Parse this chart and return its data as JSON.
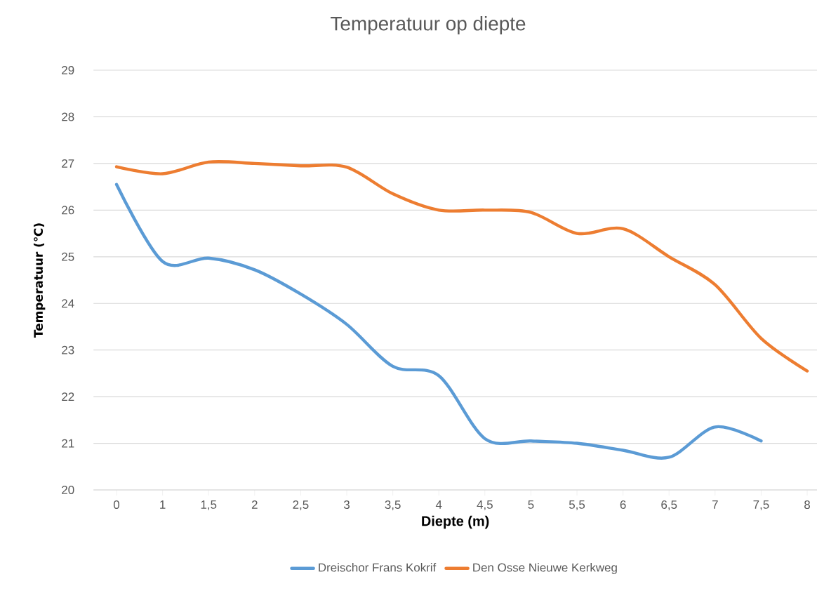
{
  "chart_data": {
    "type": "line",
    "title": "Temperatuur op diepte",
    "xlabel": "Diepte (m)",
    "ylabel": "Temperatuur (℃)",
    "categories": [
      "0",
      "1",
      "1,5",
      "2",
      "2,5",
      "3",
      "3,5",
      "4",
      "4,5",
      "5",
      "5,5",
      "6",
      "6,5",
      "7",
      "7,5",
      "8"
    ],
    "series": [
      {
        "name": "Dreischor Frans Kokrif",
        "color": "#5b9bd5",
        "values": [
          26.55,
          24.9,
          24.97,
          24.72,
          24.2,
          23.55,
          22.65,
          22.45,
          21.1,
          21.05,
          21.0,
          20.85,
          20.7,
          21.35,
          21.05,
          null
        ]
      },
      {
        "name": "Den Osse Nieuwe Kerkweg",
        "color": "#ed7d31",
        "values": [
          26.93,
          26.78,
          27.03,
          27.0,
          26.95,
          26.92,
          26.35,
          26.0,
          26.0,
          25.95,
          25.5,
          25.6,
          25.0,
          24.4,
          23.25,
          22.55
        ]
      }
    ],
    "ylim": [
      20,
      29
    ],
    "yticks": [
      20,
      21,
      22,
      23,
      24,
      25,
      26,
      27,
      28,
      29
    ],
    "grid": "y",
    "legend": "bottom",
    "marker": "none",
    "line_style": "solid"
  }
}
